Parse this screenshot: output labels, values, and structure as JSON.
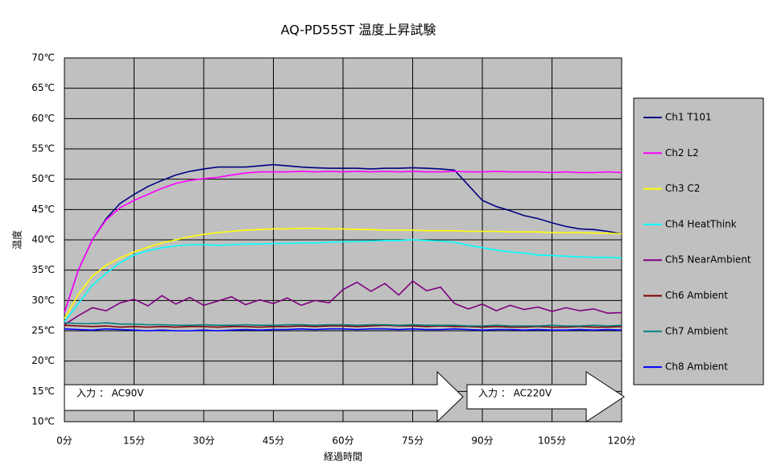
{
  "chart_data": {
    "type": "line",
    "title": "AQ-PD55ST  温度上昇試験",
    "x_label": "経過時間",
    "y_label": "温度",
    "xlim": [
      0,
      120
    ],
    "ylim": [
      10,
      70
    ],
    "xticks": [
      {
        "value": 0,
        "label": "0分"
      },
      {
        "value": 15,
        "label": "15分"
      },
      {
        "value": 30,
        "label": "30分"
      },
      {
        "value": 45,
        "label": "45分"
      },
      {
        "value": 60,
        "label": "60分"
      },
      {
        "value": 75,
        "label": "75分"
      },
      {
        "value": 90,
        "label": "90分"
      },
      {
        "value": 105,
        "label": "105分"
      },
      {
        "value": 120,
        "label": "120分"
      }
    ],
    "yticks": [
      {
        "value": 10,
        "label": "10℃"
      },
      {
        "value": 15,
        "label": "15℃"
      },
      {
        "value": 20,
        "label": "20℃"
      },
      {
        "value": 25,
        "label": "25℃"
      },
      {
        "value": 30,
        "label": "30℃"
      },
      {
        "value": 35,
        "label": "35℃"
      },
      {
        "value": 40,
        "label": "40℃"
      },
      {
        "value": 45,
        "label": "45℃"
      },
      {
        "value": 50,
        "label": "50℃"
      },
      {
        "value": 55,
        "label": "55℃"
      },
      {
        "value": 60,
        "label": "60℃"
      },
      {
        "value": 65,
        "label": "65℃"
      },
      {
        "value": 70,
        "label": "70℃"
      }
    ],
    "grid": true,
    "annotations": [
      "入力 ： AC90V",
      "入力 ： AC220V"
    ],
    "x": [
      0,
      3,
      6,
      9,
      12,
      15,
      18,
      21,
      24,
      27,
      30,
      33,
      36,
      39,
      42,
      45,
      48,
      51,
      54,
      57,
      60,
      63,
      66,
      69,
      72,
      75,
      78,
      81,
      84,
      87,
      90,
      93,
      96,
      99,
      102,
      105,
      108,
      111,
      114,
      117,
      120
    ],
    "series": [
      {
        "name": "Ch1 T101",
        "color": "#000080",
        "values": [
          28,
          35,
          40,
          43.5,
          46,
          47.5,
          48.8,
          49.8,
          50.7,
          51.3,
          51.7,
          52,
          52,
          52,
          52.2,
          52.4,
          52.2,
          52,
          51.9,
          51.8,
          51.8,
          51.8,
          51.7,
          51.8,
          51.8,
          51.9,
          51.8,
          51.7,
          51.5,
          49,
          46.5,
          45.5,
          44.8,
          44,
          43.5,
          42.8,
          42.2,
          41.8,
          41.7,
          41.4,
          41
        ]
      },
      {
        "name": "Ch2 L2",
        "color": "#ff00ff",
        "values": [
          28,
          35,
          40,
          43.3,
          45.3,
          46.5,
          47.5,
          48.5,
          49.3,
          49.8,
          50.1,
          50.3,
          50.7,
          51,
          51.2,
          51.2,
          51.2,
          51.3,
          51.2,
          51.3,
          51.2,
          51.3,
          51.2,
          51.3,
          51.2,
          51.3,
          51.2,
          51.2,
          51.3,
          51.2,
          51.2,
          51.3,
          51.2,
          51.2,
          51.2,
          51.1,
          51.2,
          51.1,
          51.1,
          51.2,
          51.1
        ]
      },
      {
        "name": "Ch3 C2",
        "color": "#ffff00",
        "values": [
          27,
          31,
          34,
          35.8,
          37,
          38,
          38.8,
          39.5,
          40,
          40.5,
          40.9,
          41.2,
          41.4,
          41.6,
          41.7,
          41.8,
          41.8,
          41.9,
          41.9,
          41.8,
          41.8,
          41.7,
          41.7,
          41.6,
          41.6,
          41.6,
          41.5,
          41.5,
          41.5,
          41.4,
          41.4,
          41.4,
          41.3,
          41.3,
          41.3,
          41.2,
          41.2,
          41.2,
          41.1,
          41.1,
          41
        ]
      },
      {
        "name": "Ch4 HeatThink",
        "color": "#00ffff",
        "values": [
          26.5,
          29.5,
          32.5,
          34.5,
          36.2,
          37.5,
          38.2,
          38.7,
          39,
          39.2,
          39.2,
          39.1,
          39.2,
          39.3,
          39.3,
          39.4,
          39.4,
          39.5,
          39.5,
          39.6,
          39.7,
          39.7,
          39.8,
          39.9,
          39.9,
          40,
          39.9,
          39.8,
          39.6,
          39.1,
          38.7,
          38.3,
          38,
          37.8,
          37.5,
          37.4,
          37.3,
          37.2,
          37.1,
          37.1,
          37
        ]
      },
      {
        "name": "Ch5 NearAmbient",
        "color": "#800080",
        "values": [
          26,
          27.5,
          28.8,
          28.3,
          29.6,
          30.2,
          29.1,
          30.8,
          29.4,
          30.5,
          29.2,
          29.9,
          30.6,
          29.3,
          30.1,
          29.5,
          30.4,
          29.2,
          30,
          29.6,
          31.8,
          33,
          31.5,
          32.8,
          30.9,
          33.2,
          31.6,
          32.2,
          29.5,
          28.6,
          29.4,
          28.3,
          29.2,
          28.5,
          28.9,
          28.2,
          28.8,
          28.3,
          28.6,
          27.9,
          28
        ]
      },
      {
        "name": "Ch6 Ambient",
        "color": "#800000",
        "values": [
          25.9,
          25.8,
          25.7,
          25.8,
          25.6,
          25.7,
          25.6,
          25.7,
          25.6,
          25.7,
          25.7,
          25.6,
          25.7,
          25.7,
          25.6,
          25.7,
          25.7,
          25.8,
          25.7,
          25.8,
          25.8,
          25.7,
          25.8,
          25.9,
          25.8,
          25.8,
          25.7,
          25.8,
          25.7,
          25.7,
          25.6,
          25.7,
          25.6,
          25.6,
          25.7,
          25.6,
          25.6,
          25.7,
          25.6,
          25.6,
          25.7
        ]
      },
      {
        "name": "Ch7 Ambient",
        "color": "#008080",
        "values": [
          26.3,
          26.2,
          26.2,
          26.3,
          26.1,
          26.1,
          26,
          26,
          25.9,
          25.9,
          26,
          25.9,
          25.9,
          26,
          25.9,
          25.9,
          26,
          26,
          25.9,
          26,
          26,
          25.9,
          26,
          26,
          25.9,
          26,
          25.9,
          25.9,
          25.9,
          25.8,
          25.8,
          25.9,
          25.8,
          25.8,
          25.8,
          25.9,
          25.8,
          25.8,
          25.9,
          25.8,
          25.9
        ]
      },
      {
        "name": "Ch8 Ambient",
        "color": "#0000ff",
        "values": [
          25.3,
          25.2,
          25.1,
          25.3,
          25.2,
          25.1,
          25,
          25.1,
          25,
          25,
          25.1,
          25,
          25.1,
          25.2,
          25.1,
          25.2,
          25.2,
          25.3,
          25.2,
          25.3,
          25.3,
          25.2,
          25.3,
          25.3,
          25.2,
          25.3,
          25.2,
          25.2,
          25.3,
          25.2,
          25.1,
          25.2,
          25.2,
          25.1,
          25.2,
          25.1,
          25.1,
          25.2,
          25.1,
          25.2,
          25.1
        ]
      }
    ]
  }
}
